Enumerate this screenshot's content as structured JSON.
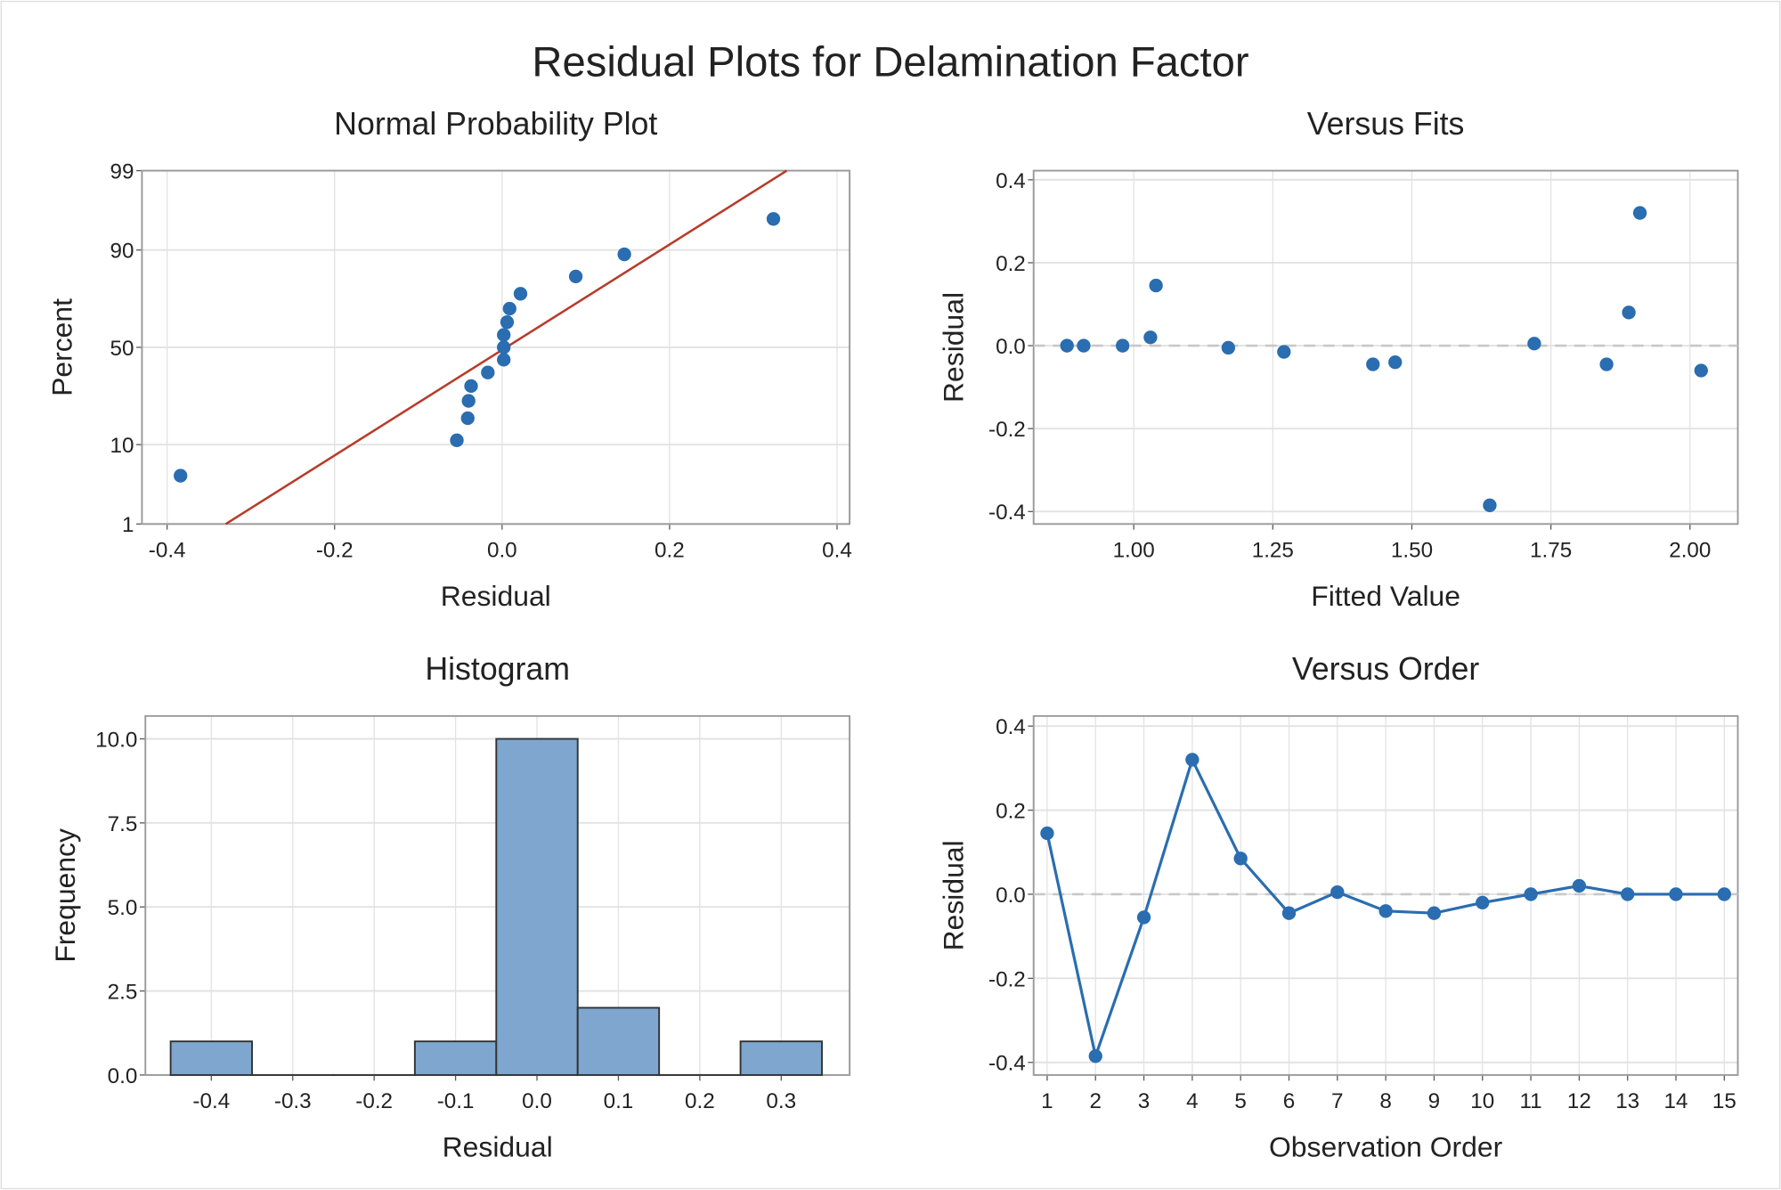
{
  "title": "Residual Plots for Delamination Factor",
  "colors": {
    "point": "#2a6db0",
    "fit_line": "#b83b2a",
    "bar": "#7ea6cf",
    "bar_edge": "#333333",
    "grid": "#e2e2e2",
    "ref": "#c8c8c8",
    "frame": "#9a9a9a"
  },
  "chart_data": [
    {
      "type": "scatter",
      "title": "Normal Probability Plot",
      "xlabel": "Residual",
      "ylabel": "Percent",
      "xlim": [
        -0.43,
        0.415
      ],
      "xticks": [
        -0.4,
        -0.2,
        0.0,
        0.2,
        0.4
      ],
      "xtick_labels": [
        "-0.4",
        "-0.2",
        "0.0",
        "0.2",
        "0.4"
      ],
      "yscale": "normal-probability",
      "ylim": [
        1,
        99
      ],
      "yticks": [
        1,
        10,
        50,
        90,
        99
      ],
      "ytick_labels": [
        "1",
        "10",
        "50",
        "90",
        "99"
      ],
      "residuals_sorted": [
        -0.384,
        -0.054,
        -0.041,
        -0.04,
        -0.037,
        -0.017,
        0.002,
        0.002,
        0.002,
        0.006,
        0.009,
        0.022,
        0.088,
        0.146,
        0.324
      ],
      "fit_line": {
        "mean": 0.005,
        "sd": 0.144
      }
    },
    {
      "type": "scatter",
      "title": "Versus Fits",
      "xlabel": "Fitted Value",
      "ylabel": "Residual",
      "xlim": [
        0.82,
        2.086
      ],
      "xticks": [
        1.0,
        1.25,
        1.5,
        1.75,
        2.0
      ],
      "xtick_labels": [
        "1.00",
        "1.25",
        "1.50",
        "1.75",
        "2.00"
      ],
      "ylim": [
        -0.43,
        0.422
      ],
      "yticks": [
        -0.4,
        -0.2,
        0.0,
        0.2,
        0.4
      ],
      "ytick_labels": [
        "-0.4",
        "-0.2",
        "0.0",
        "0.2",
        "0.4"
      ],
      "x": [
        0.88,
        0.91,
        0.98,
        1.03,
        1.04,
        1.17,
        1.27,
        1.43,
        1.47,
        1.64,
        1.72,
        1.85,
        1.89,
        1.91,
        2.02
      ],
      "y": [
        0.0,
        0.0,
        0.0,
        0.02,
        0.145,
        -0.005,
        -0.015,
        -0.045,
        -0.04,
        -0.385,
        0.005,
        -0.045,
        0.08,
        0.32,
        -0.06
      ],
      "reference_line": 0
    },
    {
      "type": "bar",
      "title": "Histogram",
      "xlabel": "Residual",
      "ylabel": "Frequency",
      "xlim": [
        -0.481,
        0.384
      ],
      "bin_width": 0.1,
      "categories": [
        -0.4,
        -0.3,
        -0.2,
        -0.1,
        0.0,
        0.1,
        0.2,
        0.3
      ],
      "xtick_labels": [
        "-0.4",
        "-0.3",
        "-0.2",
        "-0.1",
        "0.0",
        "0.1",
        "0.2",
        "0.3"
      ],
      "values": [
        1,
        0,
        0,
        1,
        10,
        2,
        0,
        1
      ],
      "ylim": [
        0,
        10.68
      ],
      "yticks": [
        0,
        2.5,
        5,
        7.5,
        10
      ],
      "ytick_labels": [
        "0.0",
        "2.5",
        "5.0",
        "7.5",
        "10.0"
      ]
    },
    {
      "type": "line",
      "title": "Versus Order",
      "xlabel": "Observation Order",
      "ylabel": "Residual",
      "xlim": [
        0.72,
        15.28
      ],
      "xticks": [
        1,
        2,
        3,
        4,
        5,
        6,
        7,
        8,
        9,
        10,
        11,
        12,
        13,
        14,
        15
      ],
      "xtick_labels": [
        "1",
        "2",
        "3",
        "4",
        "5",
        "6",
        "7",
        "8",
        "9",
        "10",
        "11",
        "12",
        "13",
        "14",
        "15"
      ],
      "ylim": [
        -0.43,
        0.424
      ],
      "yticks": [
        -0.4,
        -0.2,
        0.0,
        0.2,
        0.4
      ],
      "ytick_labels": [
        "-0.4",
        "-0.2",
        "0.0",
        "0.2",
        "0.4"
      ],
      "x": [
        1,
        2,
        3,
        4,
        5,
        6,
        7,
        8,
        9,
        10,
        11,
        12,
        13,
        14,
        15
      ],
      "y": [
        0.145,
        -0.385,
        -0.055,
        0.32,
        0.085,
        -0.045,
        0.005,
        -0.04,
        -0.045,
        -0.02,
        0.0,
        0.02,
        0.0,
        0.0,
        0.0
      ],
      "reference_line": 0
    }
  ]
}
